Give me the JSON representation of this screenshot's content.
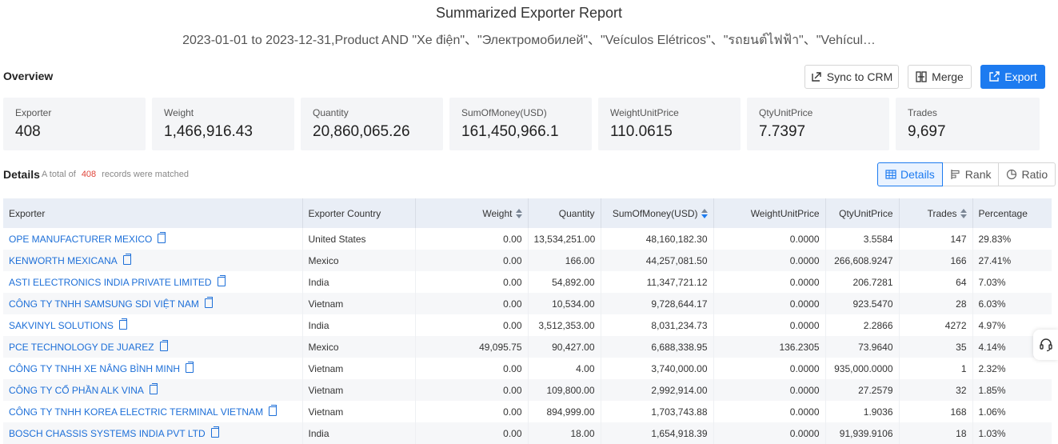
{
  "header": {
    "title": "Summarized Exporter Report",
    "subtitle": "2023-01-01 to 2023-12-31,Product AND \"Xe điện\"、\"Электромобилей\"、\"Veículos Elétricos\"、\"รถยนต์ไฟฟ้า\"、\"Vehícul…"
  },
  "overview": {
    "label": "Overview",
    "buttons": {
      "sync": "Sync to CRM",
      "merge": "Merge",
      "export": "Export"
    },
    "cards": [
      {
        "label": "Exporter",
        "value": "408"
      },
      {
        "label": "Weight",
        "value": "1,466,916.43"
      },
      {
        "label": "Quantity",
        "value": "20,860,065.26"
      },
      {
        "label": "SumOfMoney(USD)",
        "value": "161,450,966.1"
      },
      {
        "label": "WeightUnitPrice",
        "value": "110.0615"
      },
      {
        "label": "QtyUnitPrice",
        "value": "7.7397"
      },
      {
        "label": "Trades",
        "value": "9,697"
      }
    ]
  },
  "details": {
    "label": "Details",
    "count_prefix": "A total of",
    "count": "408",
    "count_suffix": "records were matched",
    "views": {
      "details": "Details",
      "rank": "Rank",
      "ratio": "Ratio"
    }
  },
  "table": {
    "columns": {
      "exporter": "Exporter",
      "country": "Exporter Country",
      "weight": "Weight",
      "quantity": "Quantity",
      "money": "SumOfMoney(USD)",
      "wup": "WeightUnitPrice",
      "qup": "QtyUnitPrice",
      "trades": "Trades",
      "percentage": "Percentage"
    },
    "rows": [
      {
        "exporter": "OPE MANUFACTURER MEXICO",
        "country": "United States",
        "weight": "0.00",
        "quantity": "13,534,251.00",
        "money": "48,160,182.30",
        "wup": "0.0000",
        "qup": "3.5584",
        "trades": "147",
        "percentage": "29.83%"
      },
      {
        "exporter": "KENWORTH MEXICANA",
        "country": "Mexico",
        "weight": "0.00",
        "quantity": "166.00",
        "money": "44,257,081.50",
        "wup": "0.0000",
        "qup": "266,608.9247",
        "trades": "166",
        "percentage": "27.41%"
      },
      {
        "exporter": "ASTI ELECTRONICS INDIA PRIVATE LIMITED",
        "country": "India",
        "weight": "0.00",
        "quantity": "54,892.00",
        "money": "11,347,721.12",
        "wup": "0.0000",
        "qup": "206.7281",
        "trades": "64",
        "percentage": "7.03%"
      },
      {
        "exporter": "CÔNG TY TNHH SAMSUNG SDI VIỆT NAM",
        "country": "Vietnam",
        "weight": "0.00",
        "quantity": "10,534.00",
        "money": "9,728,644.17",
        "wup": "0.0000",
        "qup": "923.5470",
        "trades": "28",
        "percentage": "6.03%"
      },
      {
        "exporter": "SAKVINYL SOLUTIONS",
        "country": "India",
        "weight": "0.00",
        "quantity": "3,512,353.00",
        "money": "8,031,234.73",
        "wup": "0.0000",
        "qup": "2.2866",
        "trades": "4272",
        "percentage": "4.97%"
      },
      {
        "exporter": "PCE TECHNOLOGY DE JUAREZ",
        "country": "Mexico",
        "weight": "49,095.75",
        "quantity": "90,427.00",
        "money": "6,688,338.95",
        "wup": "136.2305",
        "qup": "73.9640",
        "trades": "35",
        "percentage": "4.14%"
      },
      {
        "exporter": "CÔNG TY TNHH XE NÂNG BÌNH MINH",
        "country": "Vietnam",
        "weight": "0.00",
        "quantity": "4.00",
        "money": "3,740,000.00",
        "wup": "0.0000",
        "qup": "935,000.0000",
        "trades": "1",
        "percentage": "2.32%"
      },
      {
        "exporter": "CÔNG TY CỔ PHẦN ALK VINA",
        "country": "Vietnam",
        "weight": "0.00",
        "quantity": "109,800.00",
        "money": "2,992,914.00",
        "wup": "0.0000",
        "qup": "27.2579",
        "trades": "32",
        "percentage": "1.85%"
      },
      {
        "exporter": "CÔNG TY TNHH KOREA ELECTRIC TERMINAL VIETNAM",
        "country": "Vietnam",
        "weight": "0.00",
        "quantity": "894,999.00",
        "money": "1,703,743.88",
        "wup": "0.0000",
        "qup": "1.9036",
        "trades": "168",
        "percentage": "1.06%"
      },
      {
        "exporter": "BOSCH CHASSIS SYSTEMS INDIA PVT LTD",
        "country": "India",
        "weight": "0.00",
        "quantity": "18.00",
        "money": "1,654,918.39",
        "wup": "0.0000",
        "qup": "91,939.9106",
        "trades": "18",
        "percentage": "1.03%"
      }
    ]
  },
  "colors": {
    "primary": "#1d7bf0",
    "link": "#1d6fd8",
    "count": "#e0453a",
    "header_bg": "#e9eef6",
    "card_bg": "#f4f5f7"
  }
}
